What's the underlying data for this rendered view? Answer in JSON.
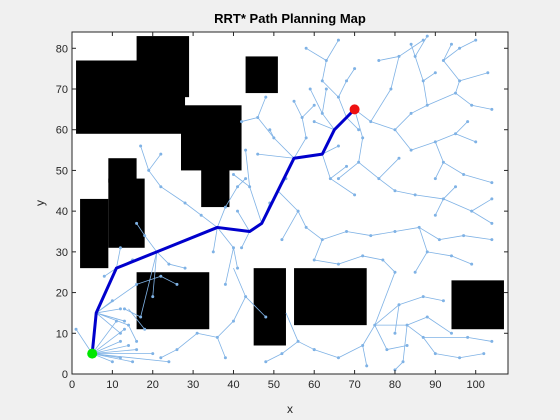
{
  "chart_data": {
    "type": "scatter",
    "title": "RRT* Path Planning Map",
    "xlabel": "x",
    "ylabel": "y",
    "xlim": [
      0,
      108
    ],
    "ylim": [
      0,
      84
    ],
    "xticks": [
      "0",
      "10",
      "20",
      "30",
      "40",
      "50",
      "60",
      "70",
      "80",
      "90",
      "100"
    ],
    "yticks": [
      "0",
      "10",
      "20",
      "30",
      "40",
      "50",
      "60",
      "70",
      "80"
    ],
    "grid": false,
    "colors": {
      "tree": "#7fb2e5",
      "path": "#0000cc",
      "obstacle": "#000000",
      "start": "#00e600",
      "goal": "#ee1111",
      "axes_bg": "#ffffff",
      "figure_bg": "#f0f0f0"
    },
    "obstacles": [
      {
        "x0": 1,
        "x1": 28,
        "y0": 59,
        "y1": 77
      },
      {
        "x0": 16,
        "x1": 29,
        "y0": 68,
        "y1": 83
      },
      {
        "x0": 27,
        "x1": 42,
        "y0": 50,
        "y1": 66
      },
      {
        "x0": 32,
        "x1": 39,
        "y0": 41,
        "y1": 51
      },
      {
        "x0": 43,
        "x1": 51,
        "y0": 69,
        "y1": 78
      },
      {
        "x0": 2,
        "x1": 9,
        "y0": 26,
        "y1": 43
      },
      {
        "x0": 9,
        "x1": 18,
        "y0": 31,
        "y1": 48
      },
      {
        "x0": 9,
        "x1": 16,
        "y0": 47,
        "y1": 53
      },
      {
        "x0": 16,
        "x1": 34,
        "y0": 11,
        "y1": 25
      },
      {
        "x0": 45,
        "x1": 53,
        "y0": 7,
        "y1": 26
      },
      {
        "x0": 55,
        "x1": 73,
        "y0": 12,
        "y1": 26
      },
      {
        "x0": 94,
        "x1": 107,
        "y0": 11,
        "y1": 23
      }
    ],
    "path": {
      "name": "best path",
      "x": [
        5,
        6,
        11,
        21,
        36,
        44,
        47,
        51,
        55,
        62,
        65,
        68,
        70
      ],
      "y": [
        5,
        15,
        26,
        30,
        36,
        35,
        37,
        45,
        53,
        54,
        60,
        63,
        65
      ]
    },
    "start": {
      "label": "start",
      "x": 5,
      "y": 5
    },
    "goal": {
      "label": "goal",
      "x": 70,
      "y": 65
    },
    "tree_edges": [
      [
        5,
        5,
        1,
        11
      ],
      [
        5,
        5,
        11,
        13
      ],
      [
        5,
        5,
        13,
        11
      ],
      [
        5,
        5,
        12,
        8
      ],
      [
        5,
        5,
        14,
        7
      ],
      [
        5,
        5,
        16,
        6
      ],
      [
        5,
        5,
        20,
        5
      ],
      [
        5,
        5,
        15,
        3
      ],
      [
        5,
        5,
        24,
        3
      ],
      [
        5,
        5,
        12,
        4
      ],
      [
        5,
        5,
        10,
        3
      ],
      [
        6,
        15,
        14,
        12
      ],
      [
        6,
        15,
        12,
        16
      ],
      [
        6,
        15,
        12,
        10
      ],
      [
        6,
        15,
        13,
        13
      ],
      [
        6,
        15,
        10,
        18
      ],
      [
        6,
        15,
        16,
        22
      ],
      [
        11,
        26,
        12,
        31
      ],
      [
        11,
        26,
        8,
        24
      ],
      [
        11,
        26,
        15,
        28
      ],
      [
        21,
        30,
        18,
        34
      ],
      [
        21,
        30,
        24,
        27
      ],
      [
        21,
        30,
        20,
        19
      ],
      [
        21,
        30,
        17,
        14
      ],
      [
        17,
        14,
        13,
        16
      ],
      [
        36,
        36,
        32,
        39
      ],
      [
        36,
        36,
        38,
        41
      ],
      [
        36,
        36,
        35,
        30
      ],
      [
        36,
        36,
        40,
        31
      ],
      [
        40,
        31,
        38,
        22
      ],
      [
        40,
        31,
        41,
        26
      ],
      [
        44,
        35,
        42,
        31
      ],
      [
        44,
        35,
        41,
        40
      ],
      [
        47,
        37,
        44,
        46
      ],
      [
        47,
        37,
        49,
        42
      ],
      [
        44,
        46,
        40,
        49
      ],
      [
        44,
        46,
        43,
        55
      ],
      [
        51,
        45,
        56,
        40
      ],
      [
        51,
        45,
        53,
        48
      ],
      [
        56,
        40,
        52,
        33
      ],
      [
        56,
        40,
        58,
        36
      ],
      [
        55,
        53,
        50,
        58
      ],
      [
        55,
        53,
        46,
        54
      ],
      [
        55,
        53,
        58,
        58
      ],
      [
        50,
        58,
        46,
        63
      ],
      [
        50,
        58,
        49,
        60
      ],
      [
        46,
        63,
        48,
        68
      ],
      [
        46,
        63,
        42,
        62
      ],
      [
        58,
        58,
        57,
        63
      ],
      [
        57,
        63,
        55,
        67
      ],
      [
        57,
        63,
        60,
        66
      ],
      [
        62,
        54,
        64,
        48
      ],
      [
        62,
        54,
        66,
        56
      ],
      [
        64,
        48,
        70,
        44
      ],
      [
        64,
        48,
        68,
        51
      ],
      [
        65,
        60,
        62,
        64
      ],
      [
        65,
        60,
        60,
        62
      ],
      [
        62,
        64,
        59,
        70
      ],
      [
        62,
        64,
        63,
        70
      ],
      [
        68,
        63,
        71,
        60
      ],
      [
        68,
        63,
        66,
        68
      ],
      [
        66,
        68,
        62,
        72
      ],
      [
        66,
        68,
        68,
        72
      ],
      [
        62,
        72,
        63,
        77
      ],
      [
        63,
        77,
        58,
        80
      ],
      [
        63,
        77,
        66,
        82
      ],
      [
        68,
        72,
        70,
        75
      ],
      [
        70,
        65,
        74,
        62
      ],
      [
        70,
        65,
        72,
        58
      ],
      [
        74,
        62,
        79,
        70
      ],
      [
        79,
        70,
        81,
        78
      ],
      [
        81,
        78,
        87,
        82
      ],
      [
        81,
        78,
        76,
        77
      ],
      [
        74,
        62,
        80,
        60
      ],
      [
        80,
        60,
        84,
        64
      ],
      [
        80,
        60,
        84,
        55
      ],
      [
        72,
        58,
        71,
        52
      ],
      [
        71,
        52,
        66,
        48
      ],
      [
        71,
        52,
        76,
        48
      ],
      [
        76,
        48,
        81,
        53
      ],
      [
        76,
        48,
        80,
        45
      ],
      [
        84,
        64,
        88,
        66
      ],
      [
        88,
        66,
        87,
        72
      ],
      [
        87,
        72,
        90,
        74
      ],
      [
        87,
        72,
        85,
        78
      ],
      [
        85,
        78,
        88,
        83
      ],
      [
        85,
        78,
        84,
        81
      ],
      [
        88,
        66,
        95,
        69
      ],
      [
        95,
        69,
        99,
        66
      ],
      [
        95,
        69,
        96,
        72
      ],
      [
        99,
        66,
        104,
        65
      ],
      [
        96,
        72,
        103,
        74
      ],
      [
        96,
        72,
        92,
        77
      ],
      [
        92,
        77,
        96,
        80
      ],
      [
        96,
        80,
        100,
        82
      ],
      [
        92,
        77,
        94,
        81
      ],
      [
        84,
        55,
        90,
        57
      ],
      [
        90,
        57,
        95,
        59
      ],
      [
        95,
        59,
        100,
        57
      ],
      [
        95,
        59,
        98,
        62
      ],
      [
        90,
        57,
        92,
        52
      ],
      [
        92,
        52,
        97,
        49
      ],
      [
        97,
        49,
        104,
        47
      ],
      [
        92,
        52,
        90,
        48
      ],
      [
        80,
        45,
        85,
        44
      ],
      [
        85,
        44,
        92,
        43
      ],
      [
        92,
        43,
        95,
        46
      ],
      [
        92,
        43,
        99,
        40
      ],
      [
        99,
        40,
        104,
        43
      ],
      [
        99,
        40,
        104,
        37
      ],
      [
        92,
        43,
        90,
        39
      ],
      [
        58,
        36,
        62,
        33
      ],
      [
        62,
        33,
        68,
        35
      ],
      [
        68,
        35,
        74,
        34
      ],
      [
        74,
        34,
        80,
        35
      ],
      [
        80,
        35,
        86,
        36
      ],
      [
        86,
        36,
        91,
        33
      ],
      [
        91,
        33,
        97,
        34
      ],
      [
        97,
        34,
        104,
        33
      ],
      [
        86,
        36,
        88,
        30
      ],
      [
        88,
        30,
        94,
        29
      ],
      [
        94,
        29,
        99,
        27
      ],
      [
        88,
        30,
        85,
        25
      ],
      [
        62,
        33,
        60,
        28
      ],
      [
        60,
        28,
        66,
        27
      ],
      [
        66,
        27,
        72,
        29
      ],
      [
        72,
        29,
        77,
        28
      ],
      [
        77,
        28,
        80,
        25
      ],
      [
        75,
        12,
        81,
        17
      ],
      [
        81,
        17,
        87,
        19
      ],
      [
        87,
        19,
        92,
        18
      ],
      [
        81,
        17,
        80,
        10
      ],
      [
        75,
        12,
        78,
        6
      ],
      [
        78,
        6,
        83,
        7
      ],
      [
        75,
        12,
        72,
        7
      ],
      [
        72,
        7,
        66,
        4
      ],
      [
        66,
        4,
        60,
        6
      ],
      [
        72,
        7,
        73,
        2
      ],
      [
        75,
        12,
        83,
        12
      ],
      [
        83,
        12,
        88,
        14
      ],
      [
        88,
        14,
        94,
        10
      ],
      [
        83,
        12,
        87,
        9
      ],
      [
        87,
        9,
        98,
        9
      ],
      [
        98,
        9,
        104,
        8
      ],
      [
        87,
        9,
        90,
        5
      ],
      [
        90,
        5,
        96,
        4
      ],
      [
        96,
        4,
        102,
        5
      ],
      [
        83,
        12,
        82,
        3
      ],
      [
        82,
        3,
        80,
        1
      ],
      [
        80,
        25,
        75,
        12
      ],
      [
        53,
        15,
        56,
        8
      ],
      [
        56,
        8,
        60,
        6
      ],
      [
        56,
        8,
        52,
        5
      ],
      [
        52,
        5,
        48,
        3
      ],
      [
        40,
        26,
        43,
        19
      ],
      [
        43,
        19,
        40,
        13
      ],
      [
        40,
        13,
        36,
        9
      ],
      [
        36,
        9,
        31,
        10
      ],
      [
        31,
        10,
        26,
        6
      ],
      [
        26,
        6,
        22,
        4
      ],
      [
        36,
        9,
        38,
        4
      ],
      [
        43,
        19,
        48,
        14
      ],
      [
        14,
        16,
        18,
        11
      ],
      [
        14,
        12,
        16,
        8
      ],
      [
        16,
        22,
        22,
        24
      ],
      [
        22,
        24,
        26,
        22
      ],
      [
        18,
        34,
        16,
        37
      ],
      [
        24,
        27,
        28,
        26
      ],
      [
        32,
        39,
        28,
        42
      ],
      [
        28,
        42,
        22,
        46
      ],
      [
        22,
        46,
        19,
        50
      ],
      [
        19,
        50,
        17,
        56
      ],
      [
        19,
        50,
        22,
        54
      ],
      [
        38,
        41,
        41,
        46
      ],
      [
        41,
        46,
        43,
        48
      ]
    ]
  }
}
